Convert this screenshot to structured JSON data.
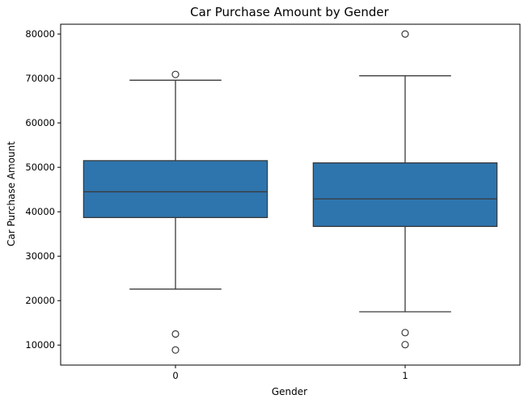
{
  "chart_data": {
    "type": "box",
    "title": "Car Purchase Amount by Gender",
    "xlabel": "Gender",
    "ylabel": "Car Purchase Amount",
    "categories": [
      "0",
      "1"
    ],
    "yticks": [
      10000,
      20000,
      30000,
      40000,
      50000,
      60000,
      70000,
      80000
    ],
    "ylim": [
      5500,
      82200
    ],
    "grid": false,
    "boxes": [
      {
        "category": "0",
        "whisker_low": 22600,
        "q1": 38700,
        "median": 44500,
        "q3": 51500,
        "whisker_high": 69600,
        "outliers": [
          70900,
          12500,
          8900
        ]
      },
      {
        "category": "1",
        "whisker_low": 17500,
        "q1": 36700,
        "median": 42900,
        "q3": 51000,
        "whisker_high": 70600,
        "outliers": [
          80000,
          12800,
          10100
        ]
      }
    ],
    "colors": {
      "box_fill": "#2e75ae",
      "line": "#3a3a3a",
      "axis": "#000000"
    }
  }
}
